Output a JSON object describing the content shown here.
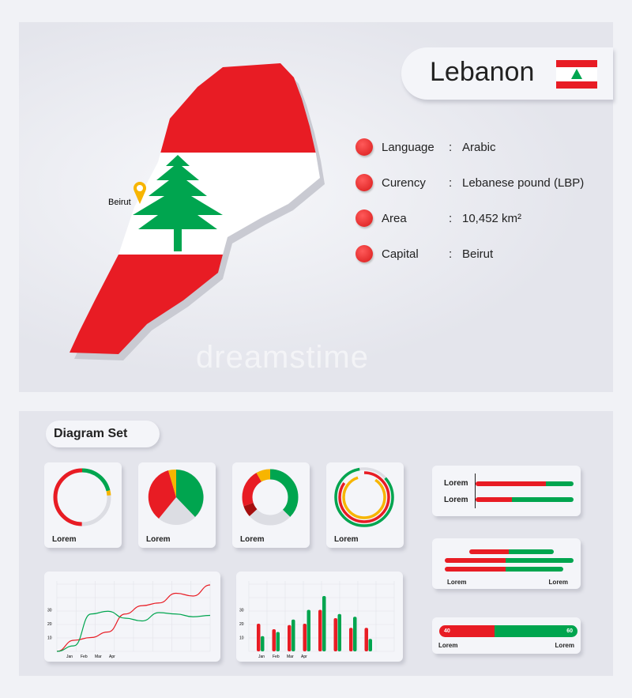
{
  "country": {
    "name": "Lebanon",
    "capital_marker": "Beirut"
  },
  "colors": {
    "red": "#e81c24",
    "green": "#00a54f",
    "yellow": "#f7b500",
    "grey": "#dcdde3",
    "dark_red": "#a50f0f"
  },
  "info": [
    {
      "key": "Language",
      "sep": ":",
      "value": "Arabic"
    },
    {
      "key": "Curency",
      "sep": ":",
      "value": "Lebanese pound (LBP)"
    },
    {
      "key": "Area",
      "sep": ":",
      "value": "10,452 km²"
    },
    {
      "key": "Capital",
      "sep": ":",
      "value": "Beirut"
    }
  ],
  "watermark": "dreamstime",
  "diagram_set": {
    "title": "Diagram Set",
    "card_labels": [
      "Lorem",
      "Lorem",
      "Lorem",
      "Lorem"
    ],
    "hbars": {
      "labels": [
        "Lorem",
        "Lorem"
      ],
      "values": [
        0.72,
        0.37
      ]
    },
    "split_bars": {
      "left_label": "Lorem",
      "right_label": "Lorem"
    },
    "progress": {
      "left_value": "40",
      "right_value": "60",
      "left_label": "Lorem",
      "right_label": "Lorem"
    }
  },
  "chart_data": [
    {
      "type": "line",
      "x_ticks": [
        "Jan",
        "Feb",
        "Mar",
        "Apr"
      ],
      "y_ticks": [
        "10",
        "20",
        "30"
      ],
      "series": [
        {
          "color": "#e81c24",
          "values": [
            0,
            8,
            10,
            14,
            27,
            33,
            35,
            42,
            40,
            48
          ]
        },
        {
          "color": "#00a54f",
          "values": [
            0,
            4,
            27,
            29,
            24,
            22,
            28,
            27,
            25,
            26
          ]
        }
      ]
    },
    {
      "type": "bar",
      "x_ticks": [
        "Jan",
        "Feb",
        "Mar",
        "Apr"
      ],
      "y_ticks": [
        "10",
        "20",
        "30"
      ],
      "series": [
        {
          "color": "#e81c24",
          "values": [
            20,
            16,
            19,
            20,
            30,
            24,
            17,
            17
          ]
        },
        {
          "color": "#00a54f",
          "values": [
            11,
            14,
            23,
            30,
            40,
            27,
            25,
            9
          ]
        }
      ]
    }
  ]
}
